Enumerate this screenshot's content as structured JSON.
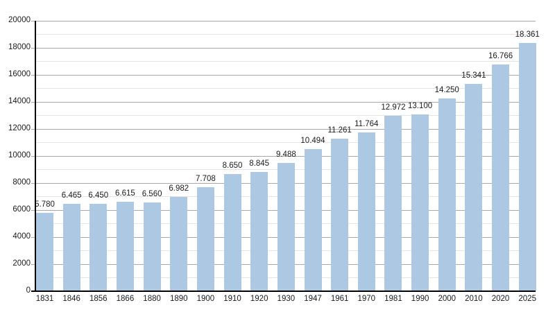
{
  "chart_data": {
    "type": "bar",
    "title": "",
    "xlabel": "",
    "ylabel": "",
    "categories": [
      "1831",
      "1846",
      "1856",
      "1866",
      "1880",
      "1890",
      "1900",
      "1910",
      "1920",
      "1930",
      "1947",
      "1961",
      "1970",
      "1981",
      "1990",
      "2000",
      "2010",
      "2020",
      "2025"
    ],
    "values": [
      5780,
      6465,
      6450,
      6615,
      6560,
      6982,
      7708,
      8650,
      8845,
      9488,
      10494,
      11261,
      11764,
      12972,
      13100,
      14250,
      15341,
      16766,
      18361
    ],
    "bar_labels": [
      "5.780",
      "6.465",
      "6.450",
      "6.615",
      "6.560",
      "6.982",
      "7.708",
      "8.650",
      "8.845",
      "9.488",
      "10.494",
      "11.261",
      "11.764",
      "12.972",
      "13.100",
      "14.250",
      "15.341",
      "16.766",
      "18.361"
    ],
    "ylim": [
      0,
      20000
    ],
    "y_major_step": 2000,
    "y_minor_step": 1000,
    "y_tick_labels": [
      "0",
      "2000",
      "4000",
      "6000",
      "8000",
      "10000",
      "12000",
      "14000",
      "16000",
      "18000",
      "20000"
    ],
    "grid": "horizontal major and minor",
    "legend": "none",
    "colors": {
      "bar_fill": "#ADC8E2",
      "grid_major": "#a8a8a8",
      "grid_minor": "#e4e4e4",
      "axis": "#000000",
      "label_text": "#1a1a1a",
      "background": "#ffffff"
    }
  }
}
